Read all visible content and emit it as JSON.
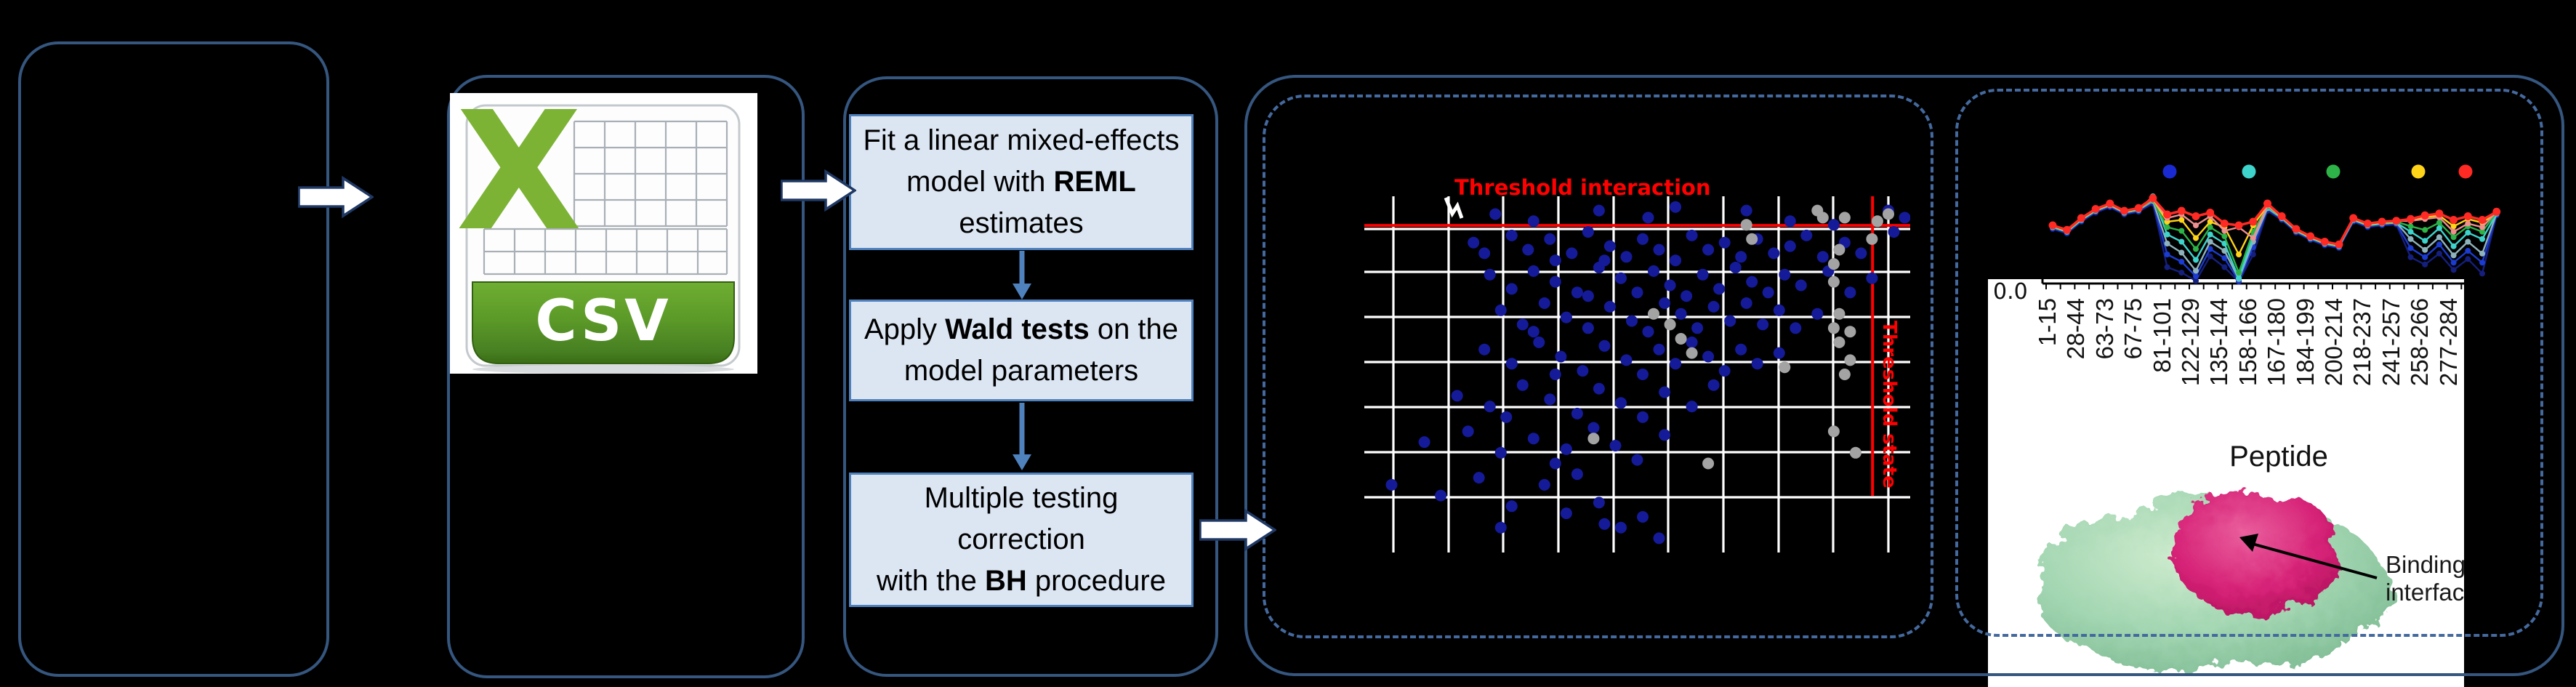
{
  "csv_icon": {
    "label": "CSV"
  },
  "flow": {
    "box1": {
      "pre": "Fit a linear mixed-effects model with ",
      "bold": "REML",
      "post": " estimates"
    },
    "box2": {
      "pre": "Apply ",
      "bold": "Wald tests",
      "post": " on the model parameters"
    },
    "box3": {
      "line1": "Multiple testing correction",
      "pre": "with the ",
      "bold": "BH",
      "post": " procedure"
    }
  },
  "protein": {
    "binding_label": "Binding interface"
  },
  "chart_data": [
    {
      "type": "scatter",
      "title": "Threshold interaction",
      "title_color": "#ff0000",
      "threshold_color": "#ff0000",
      "threshold_interaction_y_pct": 8.2,
      "threshold_state_x_pct": 93.1,
      "threshold_state_label": "Threshold state",
      "grid": true,
      "grid_color": "#ffffff",
      "series": [
        {
          "name": "interaction-points-blue",
          "color": "#151a99",
          "points": [
            [
              24,
              5
            ],
            [
              31,
              7
            ],
            [
              43,
              4
            ],
            [
              52,
              6
            ],
            [
              57,
              3
            ],
            [
              70,
              4
            ],
            [
              78,
              7
            ],
            [
              96,
              4
            ],
            [
              99,
              6
            ],
            [
              86,
              8
            ],
            [
              20,
              13
            ],
            [
              22,
              16
            ],
            [
              27,
              11
            ],
            [
              30,
              15
            ],
            [
              34,
              12
            ],
            [
              38,
              16
            ],
            [
              41,
              10
            ],
            [
              45,
              14
            ],
            [
              48,
              17
            ],
            [
              51,
              12
            ],
            [
              54,
              15
            ],
            [
              57,
              18
            ],
            [
              60,
              11
            ],
            [
              63,
              15
            ],
            [
              66,
              13
            ],
            [
              69,
              17
            ],
            [
              72,
              12
            ],
            [
              75,
              16
            ],
            [
              78,
              14
            ],
            [
              81,
              11
            ],
            [
              84,
              17
            ],
            [
              88,
              13
            ],
            [
              91,
              16
            ],
            [
              97,
              10
            ],
            [
              35,
              18
            ],
            [
              44,
              18
            ],
            [
              23,
              22
            ],
            [
              27,
              26
            ],
            [
              31,
              21
            ],
            [
              35,
              24
            ],
            [
              39,
              27
            ],
            [
              43,
              20
            ],
            [
              47,
              23
            ],
            [
              50,
              27
            ],
            [
              53,
              21
            ],
            [
              56,
              25
            ],
            [
              59,
              28
            ],
            [
              62,
              22
            ],
            [
              65,
              26
            ],
            [
              68,
              20
            ],
            [
              71,
              24
            ],
            [
              74,
              27
            ],
            [
              77,
              22
            ],
            [
              80,
              25
            ],
            [
              85,
              21
            ],
            [
              89,
              27
            ],
            [
              93,
              23
            ],
            [
              41,
              28
            ],
            [
              25,
              32
            ],
            [
              29,
              36
            ],
            [
              33,
              30
            ],
            [
              37,
              34
            ],
            [
              41,
              37
            ],
            [
              45,
              31
            ],
            [
              49,
              35
            ],
            [
              52,
              38
            ],
            [
              55,
              30
            ],
            [
              58,
              33
            ],
            [
              61,
              37
            ],
            [
              64,
              31
            ],
            [
              67,
              35
            ],
            [
              70,
              30
            ],
            [
              73,
              36
            ],
            [
              76,
              32
            ],
            [
              79,
              37
            ],
            [
              83,
              33
            ],
            [
              31,
              38
            ],
            [
              22,
              43
            ],
            [
              27,
              47
            ],
            [
              32,
              41
            ],
            [
              36,
              45
            ],
            [
              40,
              49
            ],
            [
              44,
              42
            ],
            [
              48,
              46
            ],
            [
              51,
              50
            ],
            [
              54,
              43
            ],
            [
              57,
              47
            ],
            [
              60,
              41
            ],
            [
              63,
              45
            ],
            [
              66,
              49
            ],
            [
              69,
              43
            ],
            [
              72,
              47
            ],
            [
              76,
              44
            ],
            [
              35,
              50
            ],
            [
              17,
              56
            ],
            [
              23,
              59
            ],
            [
              29,
              53
            ],
            [
              34,
              57
            ],
            [
              39,
              61
            ],
            [
              43,
              54
            ],
            [
              47,
              58
            ],
            [
              51,
              62
            ],
            [
              55,
              55
            ],
            [
              60,
              59
            ],
            [
              64,
              53
            ],
            [
              26,
              62
            ],
            [
              11,
              69
            ],
            [
              19,
              66
            ],
            [
              25,
              72
            ],
            [
              31,
              68
            ],
            [
              37,
              71
            ],
            [
              42,
              65
            ],
            [
              46,
              70
            ],
            [
              50,
              74
            ],
            [
              55,
              67
            ],
            [
              35,
              75
            ],
            [
              5,
              81
            ],
            [
              14,
              84
            ],
            [
              21,
              79
            ],
            [
              27,
              87
            ],
            [
              33,
              81
            ],
            [
              39,
              78
            ],
            [
              37,
              89
            ],
            [
              43,
              86
            ],
            [
              47,
              93
            ],
            [
              51,
              90
            ],
            [
              54,
              96
            ],
            [
              25,
              93
            ],
            [
              44,
              92
            ]
          ]
        },
        {
          "name": "state-points-gray",
          "color": "#a3a3a3",
          "points": [
            [
              83,
              4
            ],
            [
              84,
              6
            ],
            [
              88,
              6
            ],
            [
              94,
              7
            ],
            [
              70,
              8
            ],
            [
              71,
              12
            ],
            [
              87,
              15
            ],
            [
              86,
              19
            ],
            [
              86,
              24
            ],
            [
              87,
              33
            ],
            [
              86,
              37
            ],
            [
              89,
              38
            ],
            [
              87,
              41
            ],
            [
              89,
              46
            ],
            [
              88,
              50
            ],
            [
              77,
              48
            ],
            [
              56,
              36
            ],
            [
              58,
              40
            ],
            [
              60,
              44
            ],
            [
              53,
              33
            ],
            [
              42,
              68
            ],
            [
              63,
              75
            ],
            [
              86,
              66
            ],
            [
              90,
              72
            ],
            [
              93,
              12
            ],
            [
              96,
              5
            ]
          ]
        }
      ]
    },
    {
      "type": "line",
      "xlabel": "Peptide",
      "y_tick_label": "0.0",
      "categories": [
        "1-15",
        "28-44",
        "63-73",
        "67-75",
        "81-101",
        "122-129",
        "135-144",
        "158-166",
        "167-180",
        "184-199",
        "200-214",
        "218-237",
        "241-257",
        "258-266",
        "277-284"
      ],
      "legend_colors": [
        "#1a2ad2",
        "#3ed3cb",
        "#2db347",
        "#ffd318",
        "#fe2a23"
      ],
      "series": [
        {
          "name": "navy",
          "color": "#151f7d",
          "values": [
            0.6,
            0.55,
            0.68,
            0.78,
            0.84,
            0.76,
            0.79,
            0.88,
            0.18,
            0.12,
            0.03,
            0.3,
            0.18,
            0.02,
            0.32,
            0.8,
            0.7,
            0.56,
            0.48,
            0.42,
            0.39,
            0.68,
            0.62,
            0.64,
            0.65,
            0.29,
            0.21,
            0.33,
            0.15,
            0.27,
            0.11,
            0.75
          ]
        },
        {
          "name": "blue",
          "color": "#1b3bd1",
          "values": [
            0.61,
            0.56,
            0.69,
            0.79,
            0.85,
            0.77,
            0.8,
            0.9,
            0.32,
            0.24,
            0.08,
            0.38,
            0.28,
            0.03,
            0.4,
            0.82,
            0.71,
            0.57,
            0.49,
            0.43,
            0.4,
            0.69,
            0.63,
            0.65,
            0.66,
            0.39,
            0.29,
            0.43,
            0.23,
            0.36,
            0.23,
            0.76
          ]
        },
        {
          "name": "steel",
          "color": "#8fb3bd",
          "values": [
            0.62,
            0.57,
            0.7,
            0.8,
            0.86,
            0.78,
            0.81,
            0.91,
            0.44,
            0.34,
            0.14,
            0.46,
            0.36,
            0.05,
            0.46,
            0.83,
            0.72,
            0.58,
            0.5,
            0.44,
            0.41,
            0.7,
            0.64,
            0.66,
            0.67,
            0.49,
            0.37,
            0.51,
            0.31,
            0.46,
            0.33,
            0.77
          ]
        },
        {
          "name": "cyan",
          "color": "#3ed3cb",
          "values": [
            0.62,
            0.57,
            0.7,
            0.8,
            0.88,
            0.78,
            0.81,
            0.96,
            0.54,
            0.46,
            0.26,
            0.54,
            0.44,
            0.06,
            0.52,
            0.84,
            0.72,
            0.58,
            0.5,
            0.44,
            0.41,
            0.7,
            0.64,
            0.66,
            0.67,
            0.57,
            0.47,
            0.61,
            0.41,
            0.56,
            0.49,
            0.77
          ]
        },
        {
          "name": "green",
          "color": "#2db347",
          "values": [
            0.63,
            0.58,
            0.71,
            0.81,
            0.87,
            0.79,
            0.82,
            0.92,
            0.62,
            0.58,
            0.38,
            0.62,
            0.52,
            0.12,
            0.57,
            0.85,
            0.73,
            0.59,
            0.51,
            0.45,
            0.42,
            0.71,
            0.65,
            0.67,
            0.68,
            0.63,
            0.59,
            0.67,
            0.51,
            0.63,
            0.57,
            0.78
          ]
        },
        {
          "name": "yellow",
          "color": "#ffd318",
          "values": [
            0.63,
            0.58,
            0.71,
            0.81,
            0.87,
            0.79,
            0.82,
            0.93,
            0.68,
            0.7,
            0.5,
            0.68,
            0.62,
            0.32,
            0.64,
            0.86,
            0.73,
            0.59,
            0.51,
            0.45,
            0.42,
            0.71,
            0.65,
            0.67,
            0.68,
            0.7,
            0.73,
            0.75,
            0.63,
            0.71,
            0.67,
            0.78
          ]
        },
        {
          "name": "salmon",
          "color": "#ef8f8f",
          "values": [
            0.64,
            0.59,
            0.72,
            0.82,
            0.88,
            0.8,
            0.83,
            0.93,
            0.72,
            0.76,
            0.64,
            0.74,
            0.58,
            0.62,
            0.5,
            0.86,
            0.74,
            0.6,
            0.52,
            0.46,
            0.43,
            0.72,
            0.66,
            0.68,
            0.69,
            0.69,
            0.71,
            0.73,
            0.57,
            0.66,
            0.62,
            0.79
          ]
        },
        {
          "name": "red",
          "color": "#fe2a23",
          "values": [
            0.64,
            0.59,
            0.72,
            0.82,
            0.88,
            0.8,
            0.83,
            0.94,
            0.76,
            0.8,
            0.74,
            0.78,
            0.66,
            0.64,
            0.68,
            0.88,
            0.74,
            0.6,
            0.52,
            0.46,
            0.43,
            0.72,
            0.66,
            0.68,
            0.69,
            0.71,
            0.75,
            0.77,
            0.7,
            0.74,
            0.7,
            0.79
          ]
        }
      ]
    }
  ]
}
